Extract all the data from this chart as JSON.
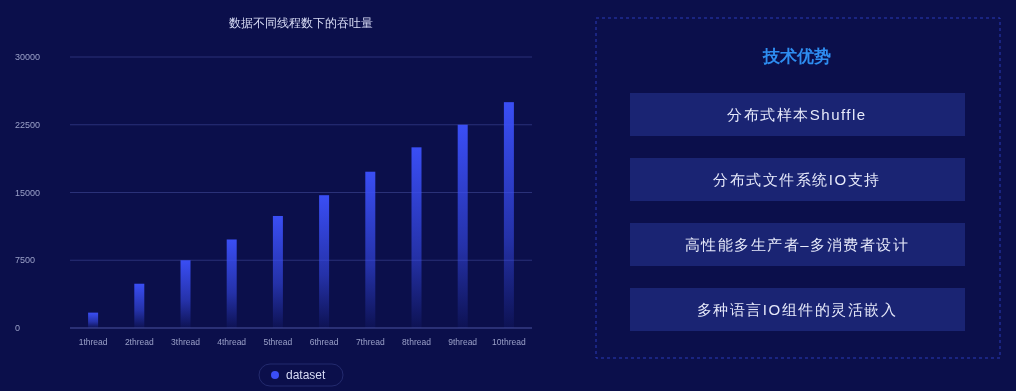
{
  "chart_data": [
    {
      "type": "bar",
      "title": "数据不同线程数下的吞吐量",
      "categories": [
        "1thread",
        "2thread",
        "3thread",
        "4thread",
        "5thread",
        "6thread",
        "7thread",
        "8thread",
        "9thread",
        "10thread"
      ],
      "series": [
        {
          "name": "dataset",
          "color": "#3a4ef5",
          "values": [
            1700,
            4900,
            7500,
            9800,
            12400,
            14700,
            17300,
            20000,
            22500,
            25000
          ]
        }
      ],
      "ylim": [
        0,
        30000
      ],
      "yticks": [
        0,
        7500,
        15000,
        22500,
        30000
      ],
      "grid": "y",
      "legend": "bottom"
    },
    {
      "type": "other",
      "title": "技术优势",
      "annotations": [
        "分布式样本Shuffle",
        "分布式文件系统IO支持",
        "高性能多生产者–多消费者设计",
        "多种语言IO组件的灵活嵌入"
      ]
    }
  ]
}
